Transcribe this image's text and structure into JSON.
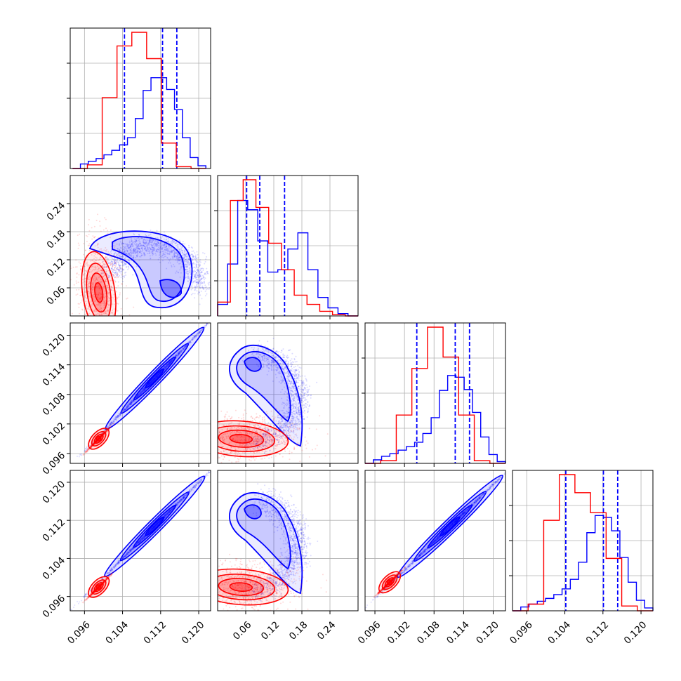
{
  "chart_data": {
    "type": "corner",
    "grid": true,
    "legend": "none",
    "colors": {
      "series_a": "#0000ff",
      "series_b": "#ff0000",
      "grid": "#b0b0b0"
    },
    "series": [
      {
        "color": "#0000ff",
        "quantiles": [
          [
            0.1044,
            0.1124,
            0.1154
          ],
          [
            0.062,
            0.09,
            0.143
          ],
          [
            0.1045,
            0.1123,
            0.1152
          ],
          [
            0.1042,
            0.1121,
            0.1151
          ]
        ],
        "histograms": [
          {
            "edges_range": [
              0.0935,
              0.1215
            ],
            "counts": [
              0,
              5,
              8,
              11,
              15,
              20,
              26,
              34,
              55,
              86,
              100,
              100,
              87,
              65,
              34,
              12,
              3
            ]
          },
          {
            "edges_range": [
              0.0,
              0.3
            ],
            "counts": [
              10,
              45,
              100,
              92,
              65,
              38,
              40,
              58,
              72,
              40,
              16,
              7,
              2,
              0
            ]
          },
          {
            "edges_range": [
              0.094,
              0.1225
            ],
            "counts": [
              0,
              4,
              8,
              11,
              15,
              19,
              24,
              34,
              52,
              83,
              100,
              98,
              84,
              58,
              30,
              10,
              2
            ]
          },
          {
            "edges_range": [
              0.093,
              0.1225
            ],
            "counts": [
              0,
              4,
              7,
              10,
              13,
              17,
              23,
              33,
              51,
              82,
              100,
              98,
              84,
              56,
              30,
              11,
              3
            ]
          }
        ]
      },
      {
        "color": "#ff0000",
        "quantiles": [],
        "histograms": [
          {
            "edges_range": [
              0.0935,
              0.1215
            ],
            "counts": [
              0,
              4,
              78,
              135,
              150,
              121,
              28,
              2,
              0
            ]
          },
          {
            "edges_range": [
              0.0,
              0.3
            ],
            "counts": [
              12,
              100,
              118,
              94,
              63,
              40,
              18,
              10,
              4,
              1,
              0
            ]
          },
          {
            "edges_range": [
              0.094,
              0.1225
            ],
            "counts": [
              0,
              3,
              55,
              108,
              155,
              121,
              55,
              3,
              0
            ]
          },
          {
            "edges_range": [
              0.093,
              0.1225
            ],
            "counts": [
              0,
              7,
              95,
              143,
              124,
              103,
              55,
              5,
              0
            ]
          }
        ]
      }
    ],
    "axes": [
      {
        "range": [
          0.093,
          0.1225
        ],
        "ticks": [
          "0.096",
          "0.104",
          "0.112",
          "0.120"
        ],
        "tick_values": [
          0.096,
          0.104,
          0.112,
          0.12
        ]
      },
      {
        "range": [
          0.0,
          0.3
        ],
        "ticks": [
          "0.06",
          "0.12",
          "0.18",
          "0.24"
        ],
        "tick_values": [
          0.06,
          0.12,
          0.18,
          0.24
        ]
      },
      {
        "range": [
          0.094,
          0.1225
        ],
        "ticks": [
          "0.096",
          "0.102",
          "0.108",
          "0.114",
          "0.120"
        ],
        "tick_values": [
          0.096,
          0.102,
          0.108,
          0.114,
          0.12
        ]
      },
      {
        "range": [
          0.093,
          0.1225
        ],
        "ticks": [
          "0.096",
          "0.104",
          "0.112",
          "0.120"
        ],
        "tick_values": [
          0.096,
          0.104,
          0.112,
          0.12
        ]
      }
    ],
    "joint": [
      {
        "row": 1,
        "col": 0,
        "blue_shape": "arch",
        "red_shape": "blob",
        "blue_mode": [
          0.115,
          0.07
        ],
        "red_mode": [
          0.099,
          0.05
        ]
      },
      {
        "row": 2,
        "col": 0,
        "blue_shape": "line",
        "red_shape": "line",
        "blue_mode": [
          0.114,
          0.113
        ],
        "red_mode": [
          0.099,
          0.099
        ]
      },
      {
        "row": 2,
        "col": 1,
        "blue_shape": "arch",
        "red_shape": "blob",
        "blue_mode": [
          0.065,
          0.114
        ],
        "red_mode": [
          0.05,
          0.099
        ]
      },
      {
        "row": 3,
        "col": 0,
        "blue_shape": "line",
        "red_shape": "line",
        "blue_mode": [
          0.114,
          0.1135
        ],
        "red_mode": [
          0.099,
          0.098
        ]
      },
      {
        "row": 3,
        "col": 1,
        "blue_shape": "arch",
        "red_shape": "blob",
        "blue_mode": [
          0.065,
          0.1145
        ],
        "red_mode": [
          0.05,
          0.098
        ]
      },
      {
        "row": 3,
        "col": 2,
        "blue_shape": "line",
        "red_shape": "line",
        "blue_mode": [
          0.114,
          0.114
        ],
        "red_mode": [
          0.099,
          0.099
        ]
      }
    ]
  }
}
